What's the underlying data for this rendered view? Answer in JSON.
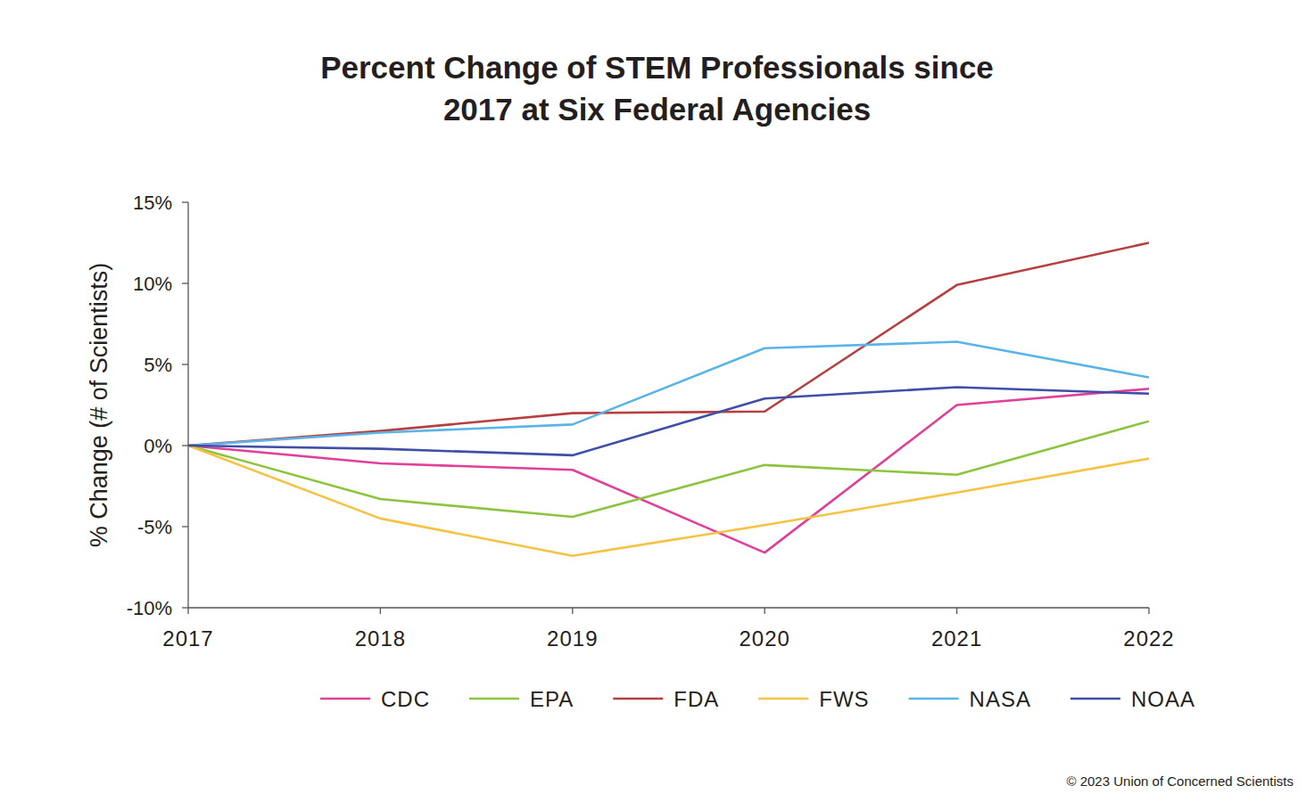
{
  "chart_data": {
    "type": "line",
    "title": "Percent Change of STEM Professionals since 2017 at Six Federal Agencies",
    "y_label": "% Change (# of Scientists)",
    "credit": "© 2023 Union of Concerned Scientists",
    "categories": [
      "2017",
      "2018",
      "2019",
      "2020",
      "2021",
      "2022"
    ],
    "series": [
      {
        "name": "CDC",
        "color": "#e0409a",
        "values": [
          0,
          -1.1,
          -1.5,
          -6.6,
          2.5,
          3.5
        ]
      },
      {
        "name": "EPA",
        "color": "#8cc43f",
        "values": [
          0,
          -3.3,
          -4.4,
          -1.2,
          -1.8,
          1.5
        ]
      },
      {
        "name": "FDA",
        "color": "#b5403f",
        "values": [
          0,
          0.9,
          2.0,
          2.1,
          9.9,
          12.5
        ]
      },
      {
        "name": "FWS",
        "color": "#f5c242",
        "values": [
          0,
          -4.5,
          -6.8,
          -4.9,
          -2.9,
          -0.8
        ]
      },
      {
        "name": "NASA",
        "color": "#5ab4e8",
        "values": [
          0,
          0.8,
          1.3,
          6.0,
          6.4,
          4.2
        ]
      },
      {
        "name": "NOAA",
        "color": "#3f4ea6",
        "values": [
          0,
          -0.2,
          -0.6,
          2.9,
          3.6,
          3.2
        ]
      }
    ],
    "ylim": [
      -10,
      15
    ],
    "yticks": [
      {
        "value": -10,
        "label": "-10%"
      },
      {
        "value": -5,
        "label": "-5%"
      },
      {
        "value": 0,
        "label": "0%"
      },
      {
        "value": 5,
        "label": "5%"
      },
      {
        "value": 10,
        "label": "10%"
      },
      {
        "value": 15,
        "label": "15%"
      }
    ],
    "grid": false,
    "legend": "bottom"
  }
}
